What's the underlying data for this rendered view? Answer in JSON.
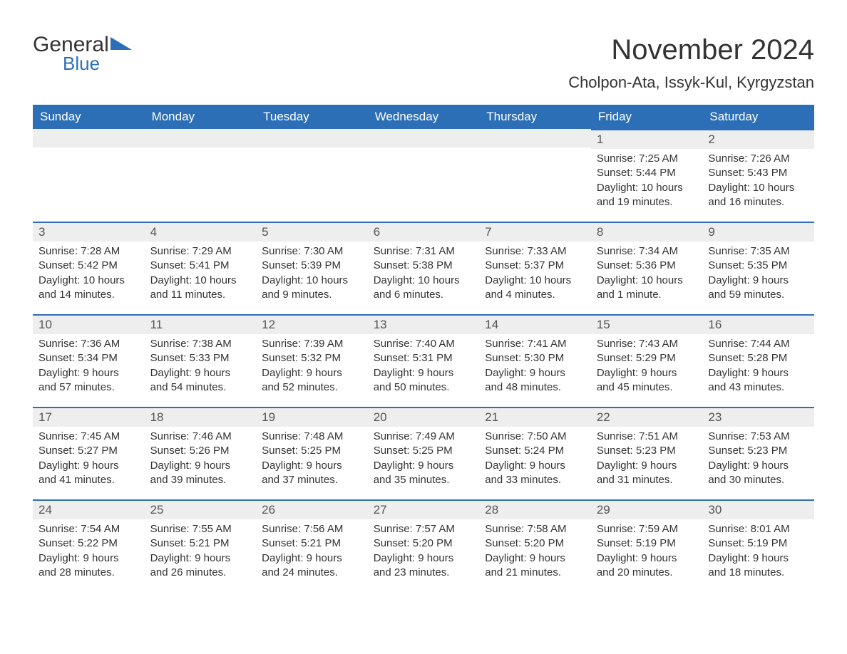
{
  "logo": {
    "word1": "General",
    "word2": "Blue",
    "accent_color": "#2d6fb7"
  },
  "title": "November 2024",
  "location": "Cholpon-Ata, Issyk-Kul, Kyrgyzstan",
  "colors": {
    "header_bg": "#2d6fb7",
    "header_text": "#ffffff",
    "daynum_bg": "#eeeeee",
    "daynum_border": "#2d6fb7",
    "body_text": "#333333",
    "page_bg": "#ffffff"
  },
  "typography": {
    "title_fontsize": 40,
    "location_fontsize": 22,
    "weekday_fontsize": 17,
    "daynum_fontsize": 17,
    "body_fontsize": 15
  },
  "layout": {
    "columns": 7,
    "rows": 5,
    "first_day_column_index": 5
  },
  "weekdays": [
    "Sunday",
    "Monday",
    "Tuesday",
    "Wednesday",
    "Thursday",
    "Friday",
    "Saturday"
  ],
  "days": [
    {
      "n": 1,
      "sunrise": "7:25 AM",
      "sunset": "5:44 PM",
      "daylight": "10 hours and 19 minutes."
    },
    {
      "n": 2,
      "sunrise": "7:26 AM",
      "sunset": "5:43 PM",
      "daylight": "10 hours and 16 minutes."
    },
    {
      "n": 3,
      "sunrise": "7:28 AM",
      "sunset": "5:42 PM",
      "daylight": "10 hours and 14 minutes."
    },
    {
      "n": 4,
      "sunrise": "7:29 AM",
      "sunset": "5:41 PM",
      "daylight": "10 hours and 11 minutes."
    },
    {
      "n": 5,
      "sunrise": "7:30 AM",
      "sunset": "5:39 PM",
      "daylight": "10 hours and 9 minutes."
    },
    {
      "n": 6,
      "sunrise": "7:31 AM",
      "sunset": "5:38 PM",
      "daylight": "10 hours and 6 minutes."
    },
    {
      "n": 7,
      "sunrise": "7:33 AM",
      "sunset": "5:37 PM",
      "daylight": "10 hours and 4 minutes."
    },
    {
      "n": 8,
      "sunrise": "7:34 AM",
      "sunset": "5:36 PM",
      "daylight": "10 hours and 1 minute."
    },
    {
      "n": 9,
      "sunrise": "7:35 AM",
      "sunset": "5:35 PM",
      "daylight": "9 hours and 59 minutes."
    },
    {
      "n": 10,
      "sunrise": "7:36 AM",
      "sunset": "5:34 PM",
      "daylight": "9 hours and 57 minutes."
    },
    {
      "n": 11,
      "sunrise": "7:38 AM",
      "sunset": "5:33 PM",
      "daylight": "9 hours and 54 minutes."
    },
    {
      "n": 12,
      "sunrise": "7:39 AM",
      "sunset": "5:32 PM",
      "daylight": "9 hours and 52 minutes."
    },
    {
      "n": 13,
      "sunrise": "7:40 AM",
      "sunset": "5:31 PM",
      "daylight": "9 hours and 50 minutes."
    },
    {
      "n": 14,
      "sunrise": "7:41 AM",
      "sunset": "5:30 PM",
      "daylight": "9 hours and 48 minutes."
    },
    {
      "n": 15,
      "sunrise": "7:43 AM",
      "sunset": "5:29 PM",
      "daylight": "9 hours and 45 minutes."
    },
    {
      "n": 16,
      "sunrise": "7:44 AM",
      "sunset": "5:28 PM",
      "daylight": "9 hours and 43 minutes."
    },
    {
      "n": 17,
      "sunrise": "7:45 AM",
      "sunset": "5:27 PM",
      "daylight": "9 hours and 41 minutes."
    },
    {
      "n": 18,
      "sunrise": "7:46 AM",
      "sunset": "5:26 PM",
      "daylight": "9 hours and 39 minutes."
    },
    {
      "n": 19,
      "sunrise": "7:48 AM",
      "sunset": "5:25 PM",
      "daylight": "9 hours and 37 minutes."
    },
    {
      "n": 20,
      "sunrise": "7:49 AM",
      "sunset": "5:25 PM",
      "daylight": "9 hours and 35 minutes."
    },
    {
      "n": 21,
      "sunrise": "7:50 AM",
      "sunset": "5:24 PM",
      "daylight": "9 hours and 33 minutes."
    },
    {
      "n": 22,
      "sunrise": "7:51 AM",
      "sunset": "5:23 PM",
      "daylight": "9 hours and 31 minutes."
    },
    {
      "n": 23,
      "sunrise": "7:53 AM",
      "sunset": "5:23 PM",
      "daylight": "9 hours and 30 minutes."
    },
    {
      "n": 24,
      "sunrise": "7:54 AM",
      "sunset": "5:22 PM",
      "daylight": "9 hours and 28 minutes."
    },
    {
      "n": 25,
      "sunrise": "7:55 AM",
      "sunset": "5:21 PM",
      "daylight": "9 hours and 26 minutes."
    },
    {
      "n": 26,
      "sunrise": "7:56 AM",
      "sunset": "5:21 PM",
      "daylight": "9 hours and 24 minutes."
    },
    {
      "n": 27,
      "sunrise": "7:57 AM",
      "sunset": "5:20 PM",
      "daylight": "9 hours and 23 minutes."
    },
    {
      "n": 28,
      "sunrise": "7:58 AM",
      "sunset": "5:20 PM",
      "daylight": "9 hours and 21 minutes."
    },
    {
      "n": 29,
      "sunrise": "7:59 AM",
      "sunset": "5:19 PM",
      "daylight": "9 hours and 20 minutes."
    },
    {
      "n": 30,
      "sunrise": "8:01 AM",
      "sunset": "5:19 PM",
      "daylight": "9 hours and 18 minutes."
    }
  ],
  "labels": {
    "sunrise": "Sunrise:",
    "sunset": "Sunset:",
    "daylight": "Daylight:"
  }
}
